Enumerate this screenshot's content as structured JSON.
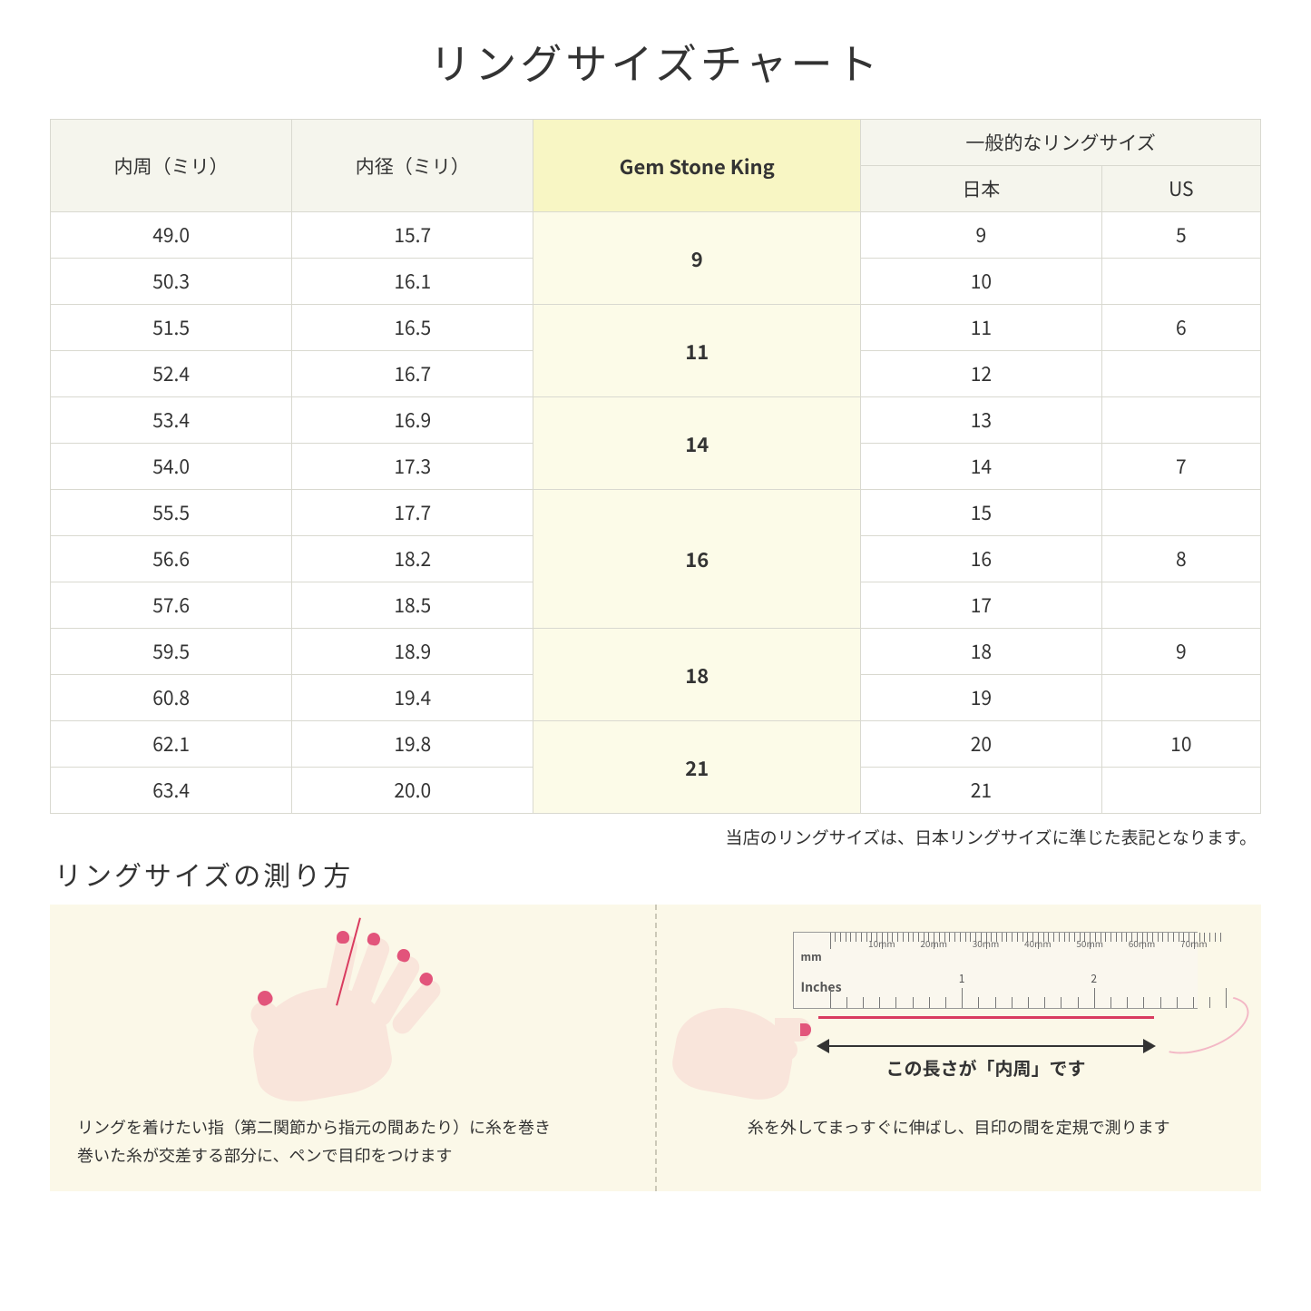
{
  "title": "リングサイズチャート",
  "table": {
    "headers": {
      "col1": "内周（ミリ）",
      "col2": "内径（ミリ）",
      "col3": "Gem Stone King",
      "col4_group": "一般的なリングサイズ",
      "col4a": "日本",
      "col4b": "US"
    },
    "header_bg": "#f5f5ed",
    "gsk_header_bg": "#f8f6c4",
    "gsk_cell_bg": "#fcfbe8",
    "border_color": "#d9d9d0",
    "groups": [
      {
        "gsk": "9",
        "rows": [
          {
            "c": "49.0",
            "d": "15.7",
            "jp": "9",
            "us": "5"
          },
          {
            "c": "50.3",
            "d": "16.1",
            "jp": "10",
            "us": ""
          }
        ]
      },
      {
        "gsk": "11",
        "rows": [
          {
            "c": "51.5",
            "d": "16.5",
            "jp": "11",
            "us": "6"
          },
          {
            "c": "52.4",
            "d": "16.7",
            "jp": "12",
            "us": ""
          }
        ]
      },
      {
        "gsk": "14",
        "rows": [
          {
            "c": "53.4",
            "d": "16.9",
            "jp": "13",
            "us": ""
          },
          {
            "c": "54.0",
            "d": "17.3",
            "jp": "14",
            "us": "7"
          }
        ]
      },
      {
        "gsk": "16",
        "rows": [
          {
            "c": "55.5",
            "d": "17.7",
            "jp": "15",
            "us": ""
          },
          {
            "c": "56.6",
            "d": "18.2",
            "jp": "16",
            "us": "8"
          },
          {
            "c": "57.6",
            "d": "18.5",
            "jp": "17",
            "us": ""
          }
        ]
      },
      {
        "gsk": "18",
        "rows": [
          {
            "c": "59.5",
            "d": "18.9",
            "jp": "18",
            "us": "9"
          },
          {
            "c": "60.8",
            "d": "19.4",
            "jp": "19",
            "us": ""
          }
        ]
      },
      {
        "gsk": "21",
        "rows": [
          {
            "c": "62.1",
            "d": "19.8",
            "jp": "20",
            "us": "10"
          },
          {
            "c": "63.4",
            "d": "20.0",
            "jp": "21",
            "us": ""
          }
        ]
      }
    ]
  },
  "note": "当店のリングサイズは、日本リングサイズに準じた表記となります。",
  "measure": {
    "title": "リングサイズの測り方",
    "panel_bg": "#fbf8e8",
    "left_caption": "リングを着けたい指（第二関節から指元の間あたり）に糸を巻き\n巻いた糸が交差する部分に、ペンで目印をつけます",
    "right_caption": "糸を外してまっすぐに伸ばし、目印の間を定規で測ります",
    "arrow_label": "この長さが「内周」です",
    "ruler": {
      "mm_unit": "mm",
      "in_unit": "Inches",
      "mm_labels": [
        "10mm",
        "20mm",
        "30mm",
        "40mm",
        "50mm",
        "60mm",
        "70mm"
      ],
      "inch_labels": [
        "1",
        "2"
      ]
    },
    "skin_color": "#f9e5db",
    "nail_color": "#e2547b",
    "thread_color": "#d93b5f"
  }
}
